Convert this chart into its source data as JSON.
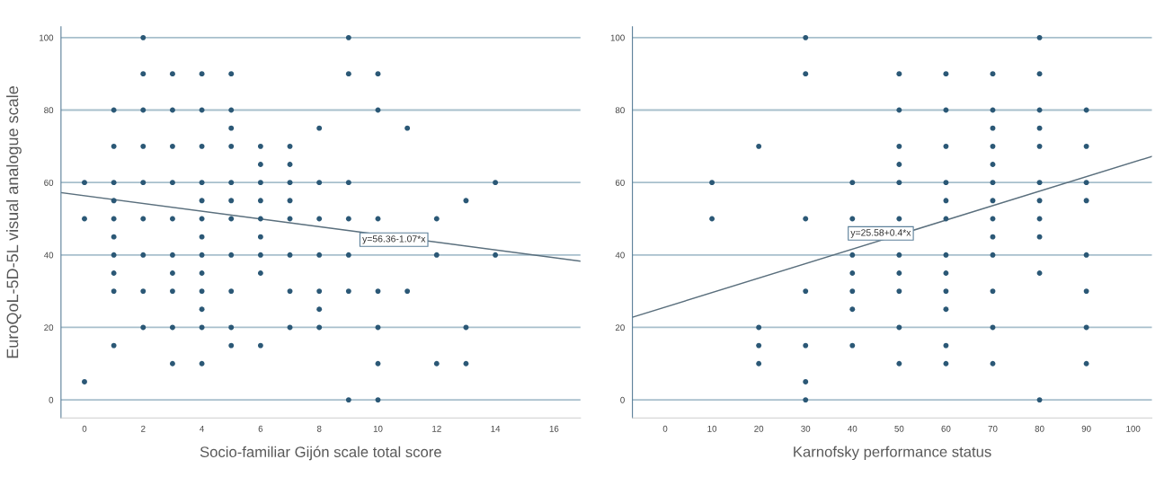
{
  "chart_data": [
    {
      "type": "scatter",
      "xlabel": "Socio-familiar Gijón scale total score",
      "ylabel": "EuroQoL-5D-5L visual analogue scale",
      "xlim": [
        -0.8,
        16.9
      ],
      "xticks": [
        0,
        2,
        4,
        6,
        8,
        10,
        12,
        14,
        16
      ],
      "ylim": [
        -5,
        103
      ],
      "yticks": [
        0,
        20,
        40,
        60,
        80,
        100
      ],
      "grid": "y",
      "marker": "circle",
      "series": [
        {
          "color": "#2b5876",
          "x": [
            0,
            0,
            0,
            1,
            1,
            1,
            1,
            1,
            1,
            1,
            1,
            1,
            1,
            2,
            2,
            2,
            2,
            2,
            2,
            2,
            2,
            2,
            3,
            3,
            3,
            3,
            3,
            3,
            3,
            3,
            3,
            3,
            4,
            4,
            4,
            4,
            4,
            4,
            4,
            4,
            4,
            4,
            4,
            4,
            4,
            5,
            5,
            5,
            5,
            5,
            5,
            5,
            5,
            5,
            5,
            5,
            6,
            6,
            6,
            6,
            6,
            6,
            6,
            6,
            6,
            7,
            7,
            7,
            7,
            7,
            7,
            7,
            7,
            8,
            8,
            8,
            8,
            8,
            8,
            8,
            9,
            9,
            9,
            9,
            9,
            9,
            9,
            10,
            10,
            10,
            10,
            10,
            10,
            10,
            11,
            11,
            12,
            12,
            12,
            13,
            13,
            13,
            14,
            14
          ],
          "values": [
            60,
            50,
            5,
            80,
            70,
            60,
            55,
            50,
            45,
            40,
            35,
            30,
            15,
            100,
            90,
            80,
            70,
            60,
            50,
            40,
            30,
            20,
            90,
            80,
            70,
            60,
            50,
            40,
            35,
            30,
            20,
            10,
            90,
            80,
            70,
            60,
            55,
            50,
            45,
            40,
            35,
            30,
            25,
            20,
            10,
            90,
            80,
            75,
            70,
            60,
            55,
            50,
            40,
            30,
            20,
            15,
            70,
            65,
            60,
            55,
            50,
            45,
            40,
            35,
            15,
            70,
            65,
            60,
            55,
            50,
            40,
            30,
            20,
            75,
            60,
            50,
            40,
            30,
            25,
            20,
            100,
            90,
            60,
            50,
            40,
            30,
            0,
            90,
            80,
            50,
            30,
            20,
            10,
            0,
            75,
            30,
            50,
            40,
            10,
            55,
            20,
            10,
            60,
            40
          ]
        },
        {
          "type": "line",
          "marker": "none",
          "color": "#5a6f7d",
          "x": [
            -0.8,
            16.9
          ],
          "values": [
            57.2,
            38.3
          ]
        }
      ],
      "annotations": [
        "y=56.36-1.07*x"
      ]
    },
    {
      "type": "scatter",
      "xlabel": "Karnofsky performance status",
      "xlim": [
        -7,
        104
      ],
      "xticks": [
        0,
        10,
        20,
        30,
        40,
        50,
        60,
        70,
        80,
        90,
        100
      ],
      "ylim": [
        -5,
        103
      ],
      "yticks": [
        0,
        20,
        40,
        60,
        80,
        100
      ],
      "grid": "y",
      "marker": "circle",
      "series": [
        {
          "color": "#2b5876",
          "x": [
            10,
            10,
            20,
            20,
            20,
            20,
            30,
            30,
            30,
            30,
            30,
            30,
            30,
            40,
            40,
            40,
            40,
            40,
            40,
            40,
            50,
            50,
            50,
            50,
            50,
            50,
            50,
            50,
            50,
            50,
            50,
            60,
            60,
            60,
            60,
            60,
            60,
            60,
            60,
            60,
            60,
            60,
            60,
            70,
            70,
            70,
            70,
            70,
            70,
            70,
            70,
            70,
            70,
            70,
            70,
            70,
            80,
            80,
            80,
            80,
            80,
            80,
            80,
            80,
            80,
            80,
            80,
            90,
            90,
            90,
            90,
            90,
            90,
            90,
            90
          ],
          "values": [
            60,
            50,
            70,
            20,
            15,
            10,
            100,
            90,
            50,
            30,
            15,
            5,
            0,
            60,
            50,
            40,
            35,
            30,
            25,
            15,
            90,
            80,
            70,
            65,
            60,
            50,
            40,
            35,
            30,
            20,
            10,
            90,
            80,
            70,
            60,
            55,
            50,
            40,
            35,
            30,
            25,
            15,
            10,
            90,
            80,
            75,
            70,
            65,
            60,
            55,
            50,
            45,
            40,
            30,
            20,
            10,
            100,
            90,
            80,
            75,
            70,
            60,
            55,
            50,
            45,
            35,
            0,
            80,
            70,
            60,
            55,
            40,
            30,
            20,
            10
          ]
        },
        {
          "type": "line",
          "marker": "none",
          "color": "#5a6f7d",
          "x": [
            -7,
            104
          ],
          "values": [
            22.8,
            67.2
          ]
        }
      ],
      "annotations": [
        "y=25.58+0.4*x"
      ]
    }
  ]
}
